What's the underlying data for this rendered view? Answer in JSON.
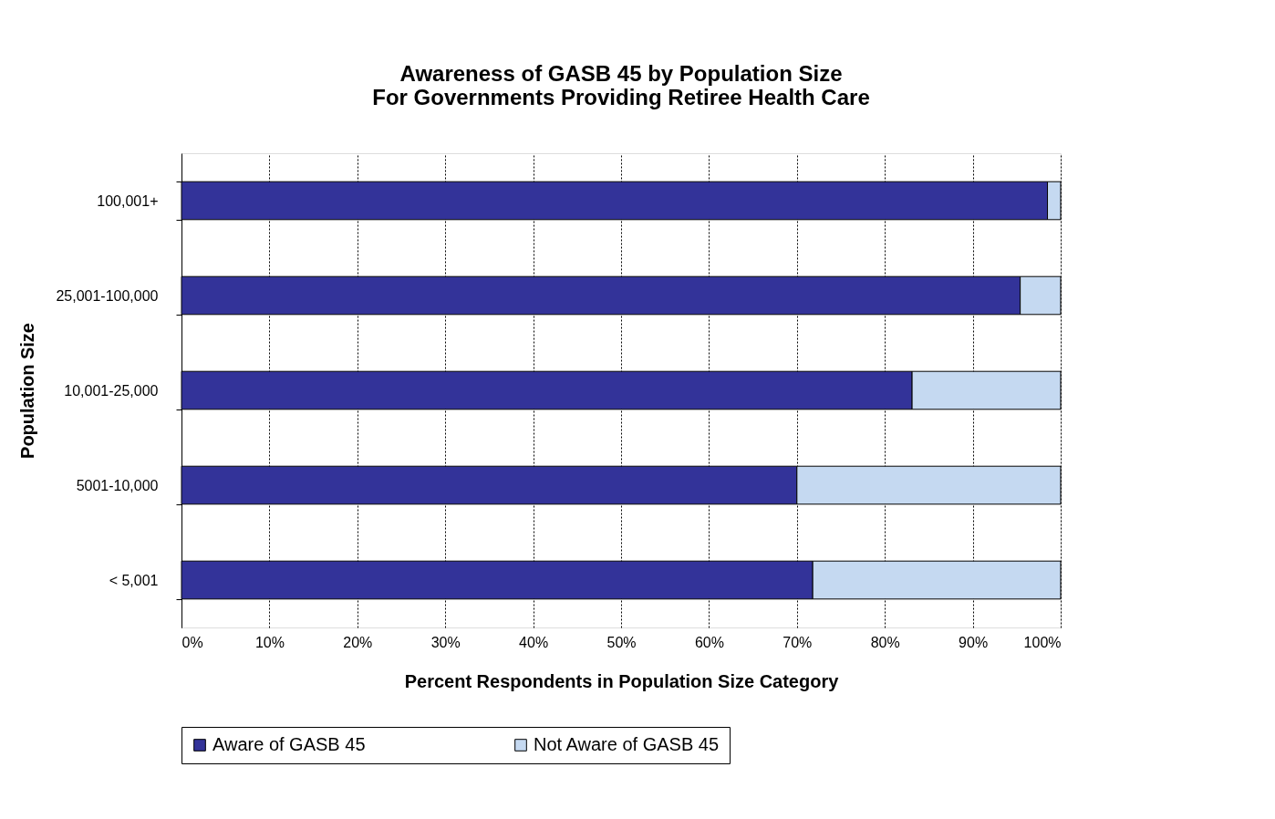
{
  "chart_data": {
    "type": "bar",
    "orientation": "horizontal",
    "stacked": true,
    "title": "Awareness of GASB 45 by Population Size\nFor Governments Providing Retiree Health Care",
    "xlabel": "Percent Respondents in Population Size Category",
    "ylabel": "Population Size",
    "categories": [
      "100,001+",
      "25,001-100,000",
      "10,001-25,000",
      "5001-10,000",
      "< 5,001"
    ],
    "series": [
      {
        "name": "Aware of GASB 45",
        "color": "#333399",
        "values": [
          98.5,
          95.4,
          83.1,
          70.0,
          71.8
        ]
      },
      {
        "name": "Not Aware of GASB 45",
        "color": "#c5d9f1",
        "values": [
          1.5,
          4.6,
          16.9,
          30.0,
          28.2
        ]
      }
    ],
    "xlim": [
      0,
      100
    ],
    "xticks": [
      {
        "value": 0,
        "label": "0%"
      },
      {
        "value": 10,
        "label": "10%"
      },
      {
        "value": 20,
        "label": "20%"
      },
      {
        "value": 30,
        "label": "30%"
      },
      {
        "value": 40,
        "label": "40%"
      },
      {
        "value": 50,
        "label": "50%"
      },
      {
        "value": 60,
        "label": "60%"
      },
      {
        "value": 70,
        "label": "70%"
      },
      {
        "value": 80,
        "label": "80%"
      },
      {
        "value": 90,
        "label": "90%"
      },
      {
        "value": 100,
        "label": "100%"
      }
    ],
    "grid": "x",
    "legend": "bottom"
  }
}
